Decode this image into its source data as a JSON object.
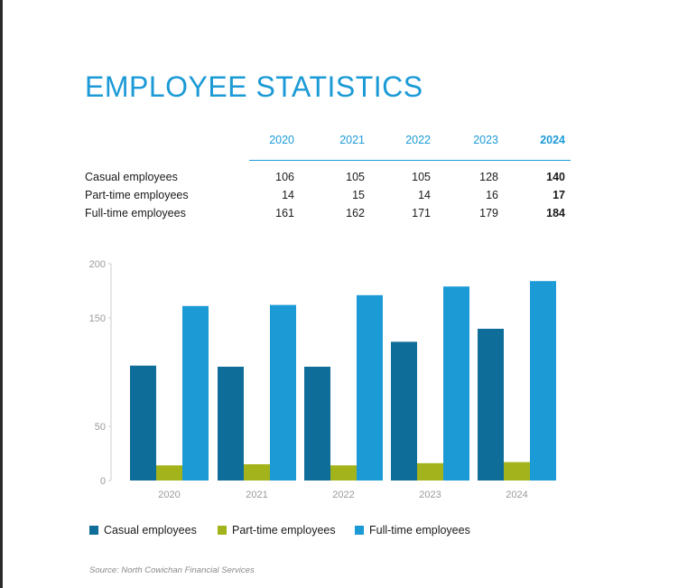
{
  "title": "EMPLOYEE STATISTICS",
  "table": {
    "years": [
      "2020",
      "2021",
      "2022",
      "2023",
      "2024"
    ],
    "rows": [
      {
        "label": "Casual employees",
        "values": [
          "106",
          "105",
          "105",
          "128",
          "140"
        ]
      },
      {
        "label": "Part-time employees",
        "values": [
          "14",
          "15",
          "14",
          "16",
          "17"
        ]
      },
      {
        "label": "Full-time employees",
        "values": [
          "161",
          "162",
          "171",
          "179",
          "184"
        ]
      }
    ]
  },
  "colors": {
    "title": "#1b9ad6",
    "casual": "#0f6d99",
    "part_time": "#a3b31c",
    "full_time": "#1b9ad6",
    "axis": "#cccccc",
    "tick_text": "#9a9a9a"
  },
  "chart_data": {
    "type": "bar",
    "categories": [
      "2020",
      "2021",
      "2022",
      "2023",
      "2024"
    ],
    "series": [
      {
        "name": "Casual employees",
        "values": [
          106,
          105,
          105,
          128,
          140
        ]
      },
      {
        "name": "Part-time employees",
        "values": [
          14,
          15,
          14,
          16,
          17
        ]
      },
      {
        "name": "Full-time employees",
        "values": [
          161,
          162,
          171,
          179,
          184
        ]
      }
    ],
    "yticks": [
      "0",
      "50",
      "150",
      "200"
    ],
    "ylim": [
      0,
      200
    ],
    "legend_position": "bottom",
    "title": "",
    "xlabel": "",
    "ylabel": ""
  },
  "legend": [
    {
      "label": "Casual employees",
      "color": "#0f6d99"
    },
    {
      "label": "Part-time employees",
      "color": "#a3b31c"
    },
    {
      "label": "Full-time employees",
      "color": "#1b9ad6"
    }
  ],
  "source": "Source: North Cowichan Financial Services"
}
